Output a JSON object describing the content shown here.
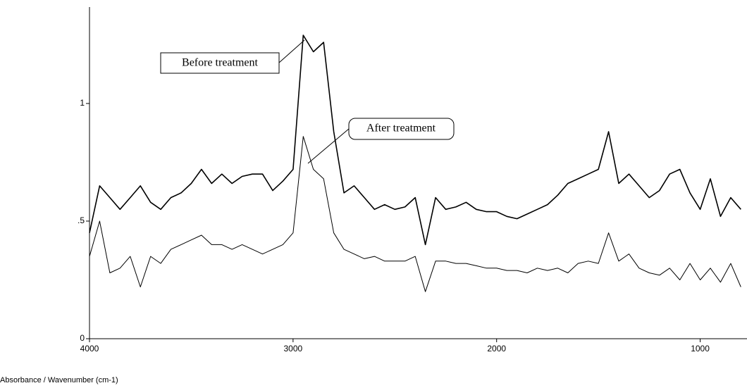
{
  "chart_data": {
    "type": "line",
    "x_label": "Absorbance / Wavenumber (cm-1)",
    "annotations": [
      "Before treatment",
      "After treatment"
    ],
    "x": [
      4000,
      3950,
      3900,
      3850,
      3800,
      3750,
      3700,
      3650,
      3600,
      3550,
      3500,
      3450,
      3400,
      3350,
      3300,
      3250,
      3200,
      3150,
      3100,
      3050,
      3000,
      2950,
      2900,
      2850,
      2800,
      2750,
      2700,
      2650,
      2600,
      2550,
      2500,
      2450,
      2400,
      2350,
      2300,
      2250,
      2200,
      2150,
      2100,
      2050,
      2000,
      1950,
      1900,
      1850,
      1800,
      1750,
      1700,
      1650,
      1600,
      1550,
      1500,
      1450,
      1400,
      1350,
      1300,
      1250,
      1200,
      1150,
      1100,
      1050,
      1000,
      950,
      900,
      850,
      800
    ],
    "series": [
      {
        "name": "Before treatment",
        "color": "#000000",
        "values": [
          0.45,
          0.65,
          0.6,
          0.55,
          0.6,
          0.65,
          0.58,
          0.55,
          0.6,
          0.62,
          0.66,
          0.72,
          0.66,
          0.7,
          0.66,
          0.69,
          0.7,
          0.7,
          0.63,
          0.67,
          0.72,
          1.29,
          1.22,
          1.26,
          0.88,
          0.62,
          0.65,
          0.6,
          0.55,
          0.57,
          0.55,
          0.56,
          0.6,
          0.4,
          0.6,
          0.55,
          0.56,
          0.58,
          0.55,
          0.54,
          0.54,
          0.52,
          0.51,
          0.53,
          0.55,
          0.57,
          0.61,
          0.66,
          0.68,
          0.7,
          0.72,
          0.88,
          0.66,
          0.7,
          0.65,
          0.6,
          0.63,
          0.7,
          0.72,
          0.62,
          0.55,
          0.68,
          0.52,
          0.6,
          0.55
        ]
      },
      {
        "name": "After treatment",
        "color": "#000000",
        "values": [
          0.35,
          0.5,
          0.28,
          0.3,
          0.35,
          0.22,
          0.35,
          0.32,
          0.38,
          0.4,
          0.42,
          0.44,
          0.4,
          0.4,
          0.38,
          0.4,
          0.38,
          0.36,
          0.38,
          0.4,
          0.45,
          0.86,
          0.72,
          0.68,
          0.45,
          0.38,
          0.36,
          0.34,
          0.35,
          0.33,
          0.33,
          0.33,
          0.35,
          0.2,
          0.33,
          0.33,
          0.32,
          0.32,
          0.31,
          0.3,
          0.3,
          0.29,
          0.29,
          0.28,
          0.3,
          0.29,
          0.3,
          0.28,
          0.32,
          0.33,
          0.32,
          0.45,
          0.33,
          0.36,
          0.3,
          0.28,
          0.27,
          0.3,
          0.25,
          0.32,
          0.25,
          0.3,
          0.24,
          0.32,
          0.22
        ]
      }
    ],
    "xlim": [
      4000,
      770
    ],
    "xticks": [
      4000,
      3000,
      2000,
      1000
    ],
    "ylim": [
      0,
      1.41
    ],
    "yticks": [
      0,
      {
        "value": 0.5,
        "label": ".5"
      },
      1
    ]
  }
}
